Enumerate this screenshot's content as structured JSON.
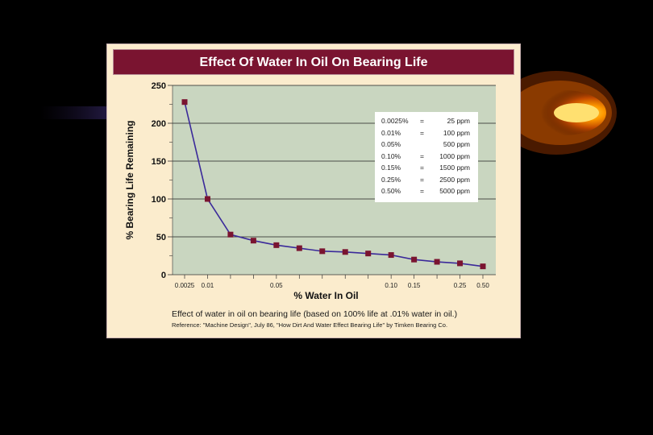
{
  "chart_data": {
    "type": "line",
    "title": "Effect Of Water In Oil On Bearing Life",
    "xlabel": "% Water In Oil",
    "ylabel": "% Bearing Life Remaining",
    "ylim": [
      0,
      250
    ],
    "yticks": [
      0,
      50,
      100,
      150,
      200,
      250
    ],
    "x_tick_labels": [
      "0.0025",
      "0.01",
      "0.05",
      "0.10",
      "0.15",
      "0.25",
      "0.50"
    ],
    "x": [
      "0.0025",
      "0.01",
      "",
      "",
      "0.05",
      "",
      "",
      "",
      "",
      "0.10",
      "0.15",
      "",
      "0.25",
      "0.50"
    ],
    "series": [
      {
        "values": [
          228,
          100,
          53,
          45,
          39,
          35,
          31,
          30,
          28,
          26,
          20,
          17,
          15,
          11
        ]
      }
    ],
    "grid": "horizontal",
    "line_color": "#3b2a9a",
    "marker_color": "#7a1430",
    "plot_background": "#c9d6c0"
  },
  "legend": {
    "rows": [
      {
        "pct": "0.0025%",
        "eq": "=",
        "ppm": "25 ppm"
      },
      {
        "pct": "0.01%",
        "eq": "=",
        "ppm": "100 ppm"
      },
      {
        "pct": "0.05%",
        "eq": "",
        "ppm": "500 ppm"
      },
      {
        "pct": "0.10%",
        "eq": "=",
        "ppm": "1000 ppm"
      },
      {
        "pct": "0.15%",
        "eq": "=",
        "ppm": "1500 ppm"
      },
      {
        "pct": "0.25%",
        "eq": "=",
        "ppm": "2500 ppm"
      },
      {
        "pct": "0.50%",
        "eq": "=",
        "ppm": "5000 ppm"
      }
    ]
  },
  "caption": {
    "line1": "Effect of water in oil on bearing life (based on 100% life at .01% water in oil.)",
    "line2": "Reference: \"Machine Design\", July 86, \"How Dirt And Water Effect Bearing Life\" by Timken Bearing Co."
  },
  "colors": {
    "page_background": "#000000",
    "card_background": "#fbeccd",
    "title_bar": "#7a1430",
    "glow": "#ff8a00"
  }
}
